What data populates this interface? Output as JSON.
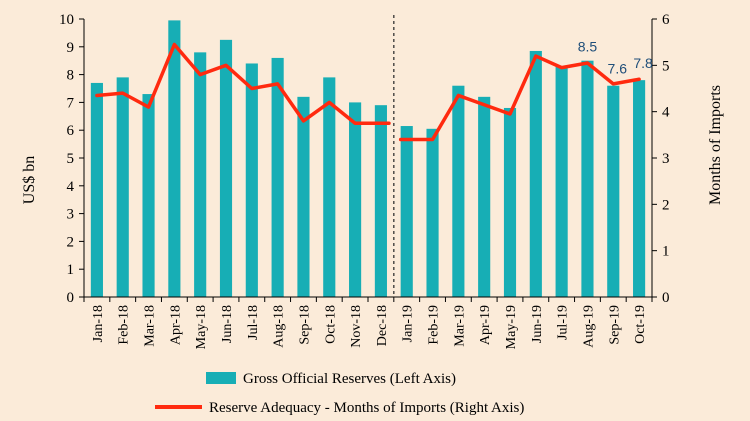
{
  "colors": {
    "background": "#FBEBD9",
    "bar": "#17AEB5",
    "line": "#FF2A0F",
    "label": "#1F4E79"
  },
  "chart_data": {
    "type": "bar+line",
    "title": "",
    "xlabel": "",
    "ylabel_left": "US$ bn",
    "ylabel_right": "Months of Imports",
    "ylim_left": [
      0,
      10
    ],
    "ylim_right": [
      0,
      6
    ],
    "yticks_left": [
      "0",
      "1",
      "2",
      "3",
      "4",
      "5",
      "6",
      "7",
      "8",
      "9",
      "10"
    ],
    "yticks_right": [
      "0",
      "1",
      "2",
      "3",
      "4",
      "5",
      "6"
    ],
    "categories": [
      "Jan-18",
      "Feb-18",
      "Mar-18",
      "Apr-18",
      "May-18",
      "Jun-18",
      "Jul-18",
      "Aug-18",
      "Sep-18",
      "Oct-18",
      "Nov-18",
      "Dec-18",
      "Jan-19",
      "Feb-19",
      "Mar-19",
      "Apr-19",
      "May-19",
      "Jun-19",
      "Jul-19",
      "Aug-19",
      "Sep-19",
      "Oct-19"
    ],
    "separator_after": "Dec-18",
    "series": [
      {
        "name": "Gross Official Reserves (Left Axis)",
        "kind": "bar",
        "axis": "left",
        "values": [
          7.7,
          7.9,
          7.3,
          9.95,
          8.8,
          9.25,
          8.4,
          8.6,
          7.2,
          7.9,
          7.0,
          6.9,
          6.15,
          6.05,
          7.6,
          7.2,
          6.8,
          8.85,
          8.3,
          8.5,
          7.6,
          7.8
        ]
      },
      {
        "name": "Reserve Adequacy - Months of Imports (Right Axis)",
        "kind": "line",
        "axis": "right",
        "values": [
          4.35,
          4.4,
          4.1,
          5.45,
          4.8,
          5.0,
          4.5,
          4.6,
          3.8,
          4.2,
          3.75,
          3.75,
          null,
          3.4,
          4.35,
          4.15,
          3.95,
          5.2,
          4.95,
          5.05,
          4.6,
          4.7
        ],
        "start_after_gap": "Feb-19",
        "segment_start_value": 3.4
      }
    ],
    "data_labels": [
      {
        "category": "Aug-19",
        "text": "8.5"
      },
      {
        "category": "Sep-19",
        "text": "7.6"
      },
      {
        "category": "Oct-19",
        "text": "7.8"
      }
    ],
    "legend": {
      "position": "bottom-center",
      "items": [
        "Gross Official Reserves (Left Axis)",
        "Reserve Adequacy - Months of Imports (Right Axis)"
      ]
    }
  }
}
